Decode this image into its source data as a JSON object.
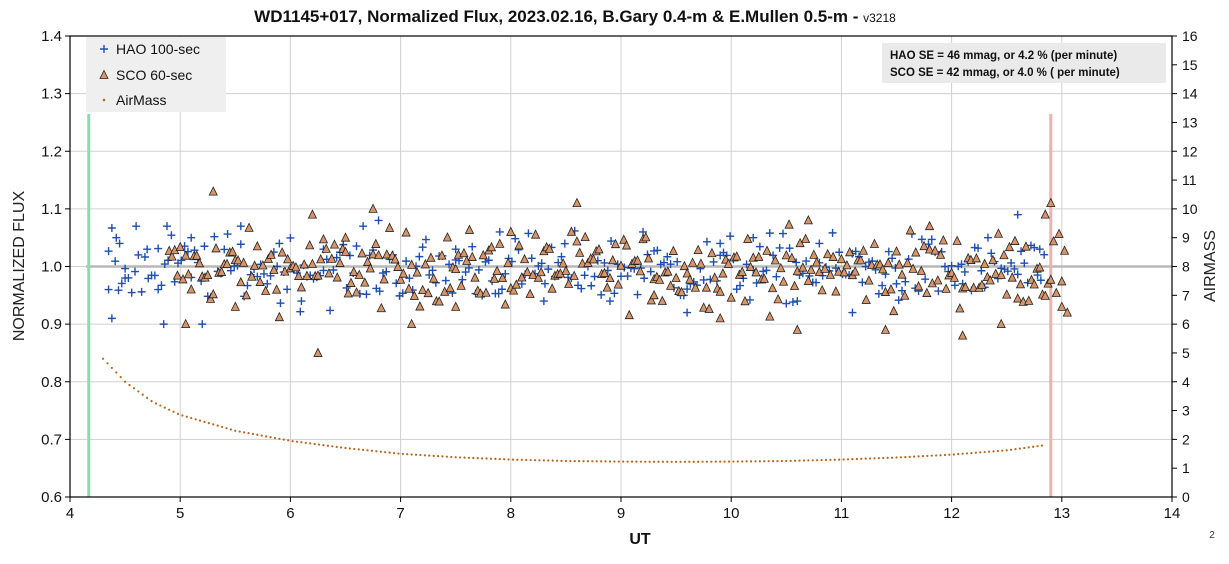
{
  "chart_data": {
    "type": "scatter",
    "title": "WD1145+017, Normalized Flux, 2023.02.16, B.Gary 0.4-m & E.Mullen 0.5-m - ",
    "title_version": "v3218",
    "xlabel": "UT",
    "ylabel": "NORMALIZED FLUX",
    "y2label": "AIRMASS",
    "xlim": [
      4,
      14
    ],
    "ylim": [
      0.6,
      1.4
    ],
    "y2lim": [
      0,
      16
    ],
    "x_ticks": [
      "4",
      "5",
      "6",
      "7",
      "8",
      "9",
      "10",
      "11",
      "12",
      "13",
      "14"
    ],
    "y_ticks": [
      "0.6",
      "0.7",
      "0.8",
      "0.9",
      "1.0",
      "1.1",
      "1.2",
      "1.3",
      "1.4"
    ],
    "y2_ticks": [
      "0",
      "1",
      "2",
      "3",
      "4",
      "5",
      "6",
      "7",
      "8",
      "9",
      "10",
      "11",
      "12",
      "13",
      "14",
      "15",
      "16"
    ],
    "grid": true,
    "legend_position": "top-left",
    "reference_line": 1.0,
    "vertical_markers": [
      {
        "x": 4.17,
        "color": "#8fd9b0"
      },
      {
        "x": 12.9,
        "color": "#e8b4b0"
      }
    ],
    "annotation_lines": [
      "HAO SE =  46 mmag, or 4.2 % (per minute)",
      "SCO SE  =  42 mmag, or 4.0 % ( per minute)"
    ],
    "page_number": "2",
    "series": [
      {
        "name": "HAO 100-sec",
        "marker": "plus",
        "color": "#1f4fb0",
        "x_range": [
          4.35,
          12.85
        ],
        "center": 0.995,
        "spread": 0.045,
        "points": [
          [
            4.35,
            0.96
          ],
          [
            4.38,
            0.91
          ],
          [
            4.42,
            1.05
          ],
          [
            4.45,
            1.04
          ],
          [
            4.5,
            0.98
          ],
          [
            4.6,
            1.07
          ],
          [
            4.7,
            1.03
          ],
          [
            4.8,
            0.96
          ],
          [
            4.85,
            0.9
          ],
          [
            4.88,
            1.07
          ],
          [
            5.1,
            1.05
          ],
          [
            5.2,
            0.9
          ],
          [
            5.55,
            1.07
          ],
          [
            5.9,
            1.04
          ],
          [
            6.1,
            0.94
          ],
          [
            6.3,
            1.03
          ],
          [
            6.8,
            1.08
          ],
          [
            7.5,
            1.03
          ],
          [
            7.9,
            1.06
          ],
          [
            8.3,
            0.94
          ],
          [
            8.9,
            0.94
          ],
          [
            9.2,
            1.06
          ],
          [
            9.6,
            0.92
          ],
          [
            9.9,
            1.04
          ],
          [
            10.2,
            1.05
          ],
          [
            10.6,
            0.94
          ],
          [
            10.8,
            1.04
          ],
          [
            11.1,
            0.92
          ],
          [
            11.5,
            0.97
          ],
          [
            12.1,
            0.97
          ],
          [
            12.6,
            1.09
          ],
          [
            12.8,
            1.03
          ]
        ]
      },
      {
        "name": "SCO 60-sec",
        "marker": "triangle",
        "color": "#d9956a",
        "x_range": [
          4.9,
          13.05
        ],
        "center": 0.995,
        "spread": 0.045,
        "points": [
          [
            5.05,
            0.9
          ],
          [
            5.3,
            1.13
          ],
          [
            5.5,
            0.93
          ],
          [
            6.2,
            1.09
          ],
          [
            6.25,
            0.85
          ],
          [
            6.5,
            1.05
          ],
          [
            6.75,
            1.1
          ],
          [
            7.1,
            0.9
          ],
          [
            7.5,
            0.93
          ],
          [
            8.0,
            1.06
          ],
          [
            8.6,
            1.11
          ],
          [
            9.3,
            0.95
          ],
          [
            9.9,
            0.91
          ],
          [
            10.6,
            0.89
          ],
          [
            10.7,
            1.08
          ],
          [
            11.4,
            0.89
          ],
          [
            11.8,
            1.07
          ],
          [
            12.1,
            0.88
          ],
          [
            12.45,
            0.9
          ],
          [
            12.85,
            1.09
          ],
          [
            12.9,
            1.11
          ],
          [
            13.0,
            0.93
          ],
          [
            13.05,
            0.92
          ]
        ]
      },
      {
        "name": "AirMass",
        "marker": "dot",
        "color": "#b5651d",
        "axis": "y2",
        "points": [
          [
            4.3,
            4.8
          ],
          [
            4.5,
            4.0
          ],
          [
            4.75,
            3.3
          ],
          [
            5.0,
            2.85
          ],
          [
            5.5,
            2.3
          ],
          [
            6.0,
            1.95
          ],
          [
            6.5,
            1.7
          ],
          [
            7.0,
            1.5
          ],
          [
            7.5,
            1.38
          ],
          [
            8.0,
            1.3
          ],
          [
            8.5,
            1.25
          ],
          [
            9.0,
            1.23
          ],
          [
            9.5,
            1.22
          ],
          [
            10.0,
            1.23
          ],
          [
            10.5,
            1.25
          ],
          [
            11.0,
            1.3
          ],
          [
            11.5,
            1.37
          ],
          [
            12.0,
            1.47
          ],
          [
            12.5,
            1.62
          ],
          [
            12.85,
            1.8
          ]
        ]
      }
    ]
  }
}
